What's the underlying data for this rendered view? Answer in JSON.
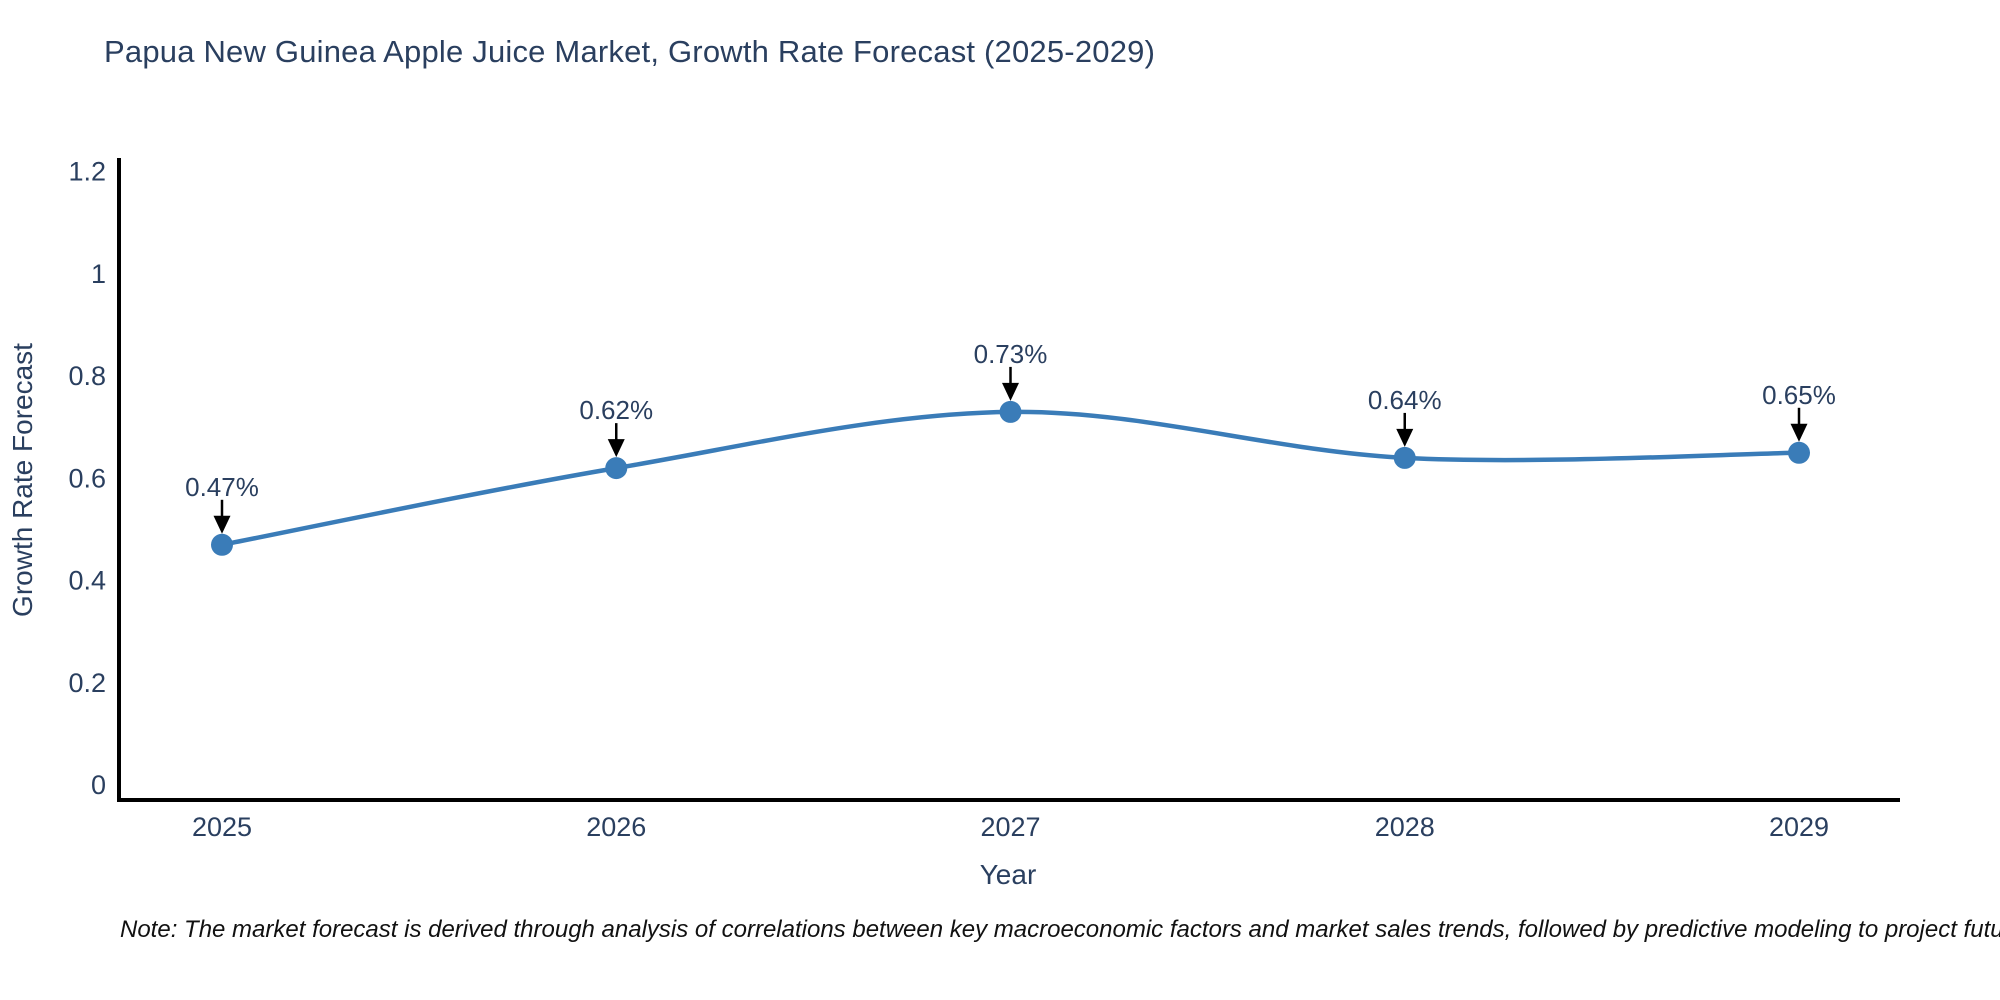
{
  "title": "Papua New Guinea Apple Juice Market, Growth Rate Forecast (2025-2029)",
  "note": "Note: The market forecast is derived through analysis of correlations between key macroeconomic factors and market sales trends, followed by predictive modeling to project future sales",
  "chart_data": {
    "type": "line",
    "title": "Papua New Guinea Apple Juice Market, Growth Rate Forecast (2025-2029)",
    "x": [
      2025,
      2026,
      2027,
      2028,
      2029
    ],
    "series": [
      {
        "name": "Growth Rate Forecast",
        "values": [
          0.47,
          0.62,
          0.73,
          0.64,
          0.65
        ]
      }
    ],
    "point_labels": [
      "0.47%",
      "0.62%",
      "0.73%",
      "0.64%",
      "0.65%"
    ],
    "xlabel": "Year",
    "ylabel": "Growth Rate Forecast",
    "ylim": [
      0,
      1.2
    ],
    "yticks": [
      0,
      0.2,
      0.4,
      0.6,
      0.8,
      1,
      1.2
    ],
    "line_shape": "spline",
    "grid": false,
    "legend": "none",
    "annotations_arrow": true,
    "colors": {
      "line": "#3a7cb8",
      "marker": "#3a7cb8",
      "text": "#2a3f5f",
      "axis_line": "#000000",
      "arrow": "#000000",
      "background": "#ffffff"
    }
  }
}
